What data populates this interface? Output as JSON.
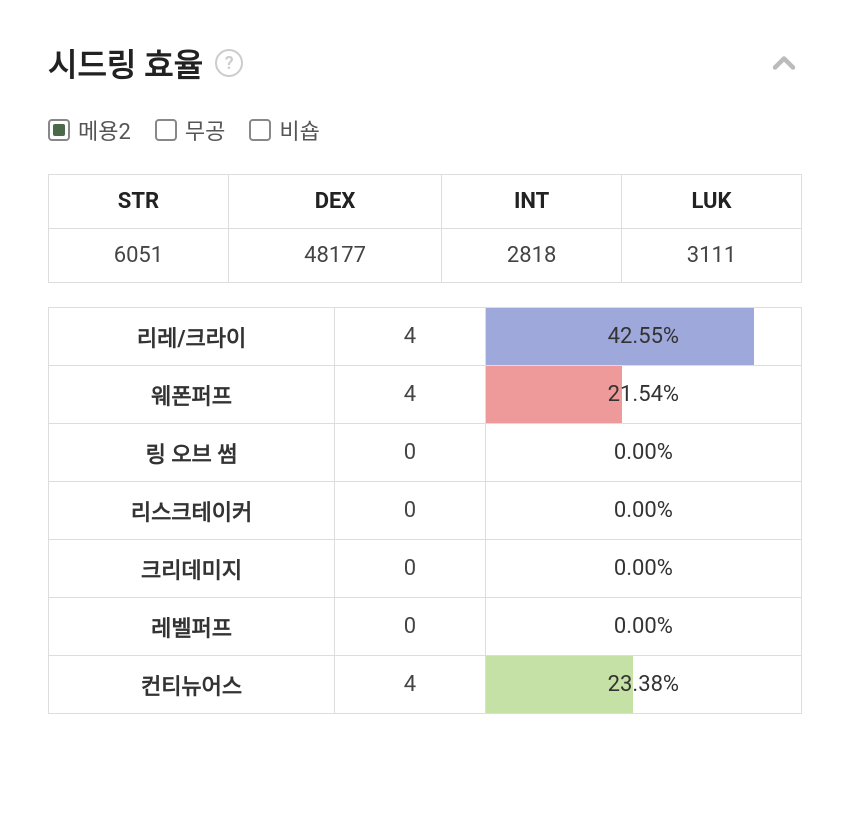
{
  "title": "시드링 효율",
  "checkboxes": [
    {
      "label": "메용2",
      "checked": true
    },
    {
      "label": "무공",
      "checked": false
    },
    {
      "label": "비숍",
      "checked": false
    }
  ],
  "stats": {
    "headers": [
      "STR",
      "DEX",
      "INT",
      "LUK"
    ],
    "values": [
      "6051",
      "48177",
      "2818",
      "3111"
    ]
  },
  "efficiency": {
    "bar_max_percent": 50,
    "rows": [
      {
        "name": "리레/크라이",
        "level": "4",
        "percent": 42.55,
        "percent_label": "42.55%",
        "color": "#9fa8da"
      },
      {
        "name": "웨폰퍼프",
        "level": "4",
        "percent": 21.54,
        "percent_label": "21.54%",
        "color": "#ef9a9a"
      },
      {
        "name": "링 오브 썸",
        "level": "0",
        "percent": 0.0,
        "percent_label": "0.00%",
        "color": ""
      },
      {
        "name": "리스크테이커",
        "level": "0",
        "percent": 0.0,
        "percent_label": "0.00%",
        "color": ""
      },
      {
        "name": "크리데미지",
        "level": "0",
        "percent": 0.0,
        "percent_label": "0.00%",
        "color": ""
      },
      {
        "name": "레벨퍼프",
        "level": "0",
        "percent": 0.0,
        "percent_label": "0.00%",
        "color": ""
      },
      {
        "name": "컨티뉴어스",
        "level": "4",
        "percent": 23.38,
        "percent_label": "23.38%",
        "color": "#c5e1a5"
      }
    ]
  },
  "colors": {
    "border": "#dddddd",
    "text": "#333333"
  }
}
